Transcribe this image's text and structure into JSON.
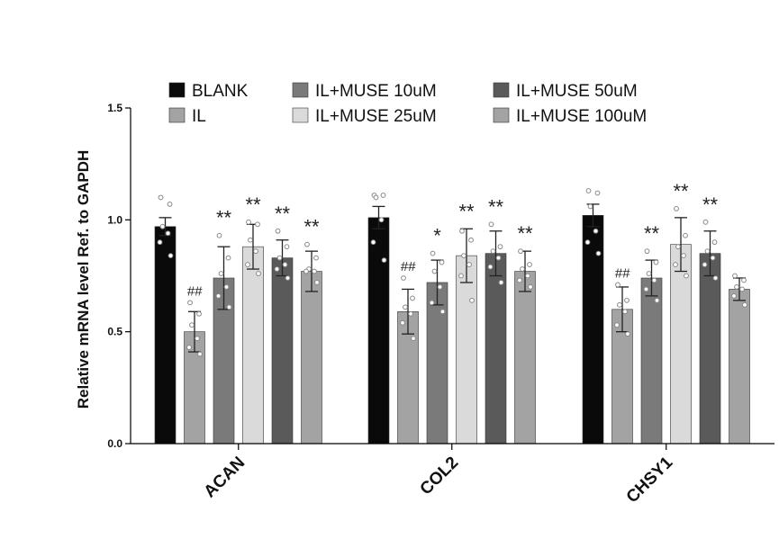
{
  "chart_data": {
    "type": "bar",
    "title": "",
    "xlabel": "",
    "ylabel": "Relative mRNA level Ref. to GAPDH",
    "ylim": [
      0,
      1.5
    ],
    "yticks": [
      0.0,
      0.5,
      1.0,
      1.5
    ],
    "ytick_labels": [
      "0.0",
      "0.5",
      "1.0",
      "1.5"
    ],
    "categories": [
      "ACAN",
      "COL2",
      "CHSY1"
    ],
    "legend_position": "top",
    "series": [
      {
        "name": "BLANK",
        "color": "#0a0a0a",
        "values": [
          0.97,
          1.01,
          1.02
        ],
        "errors": [
          0.04,
          0.05,
          0.05
        ],
        "annotations": [
          "",
          "",
          ""
        ],
        "points": [
          [
            1.1,
            1.07,
            0.97,
            0.94,
            0.9,
            0.84
          ],
          [
            1.11,
            1.11,
            1.1,
            1.0,
            0.9,
            0.82
          ],
          [
            1.13,
            1.12,
            1.06,
            0.95,
            0.9,
            0.85
          ]
        ]
      },
      {
        "name": "IL",
        "color": "#a3a3a3",
        "values": [
          0.5,
          0.59,
          0.6
        ],
        "errors": [
          0.09,
          0.1,
          0.1
        ],
        "annotations": [
          "##",
          "##",
          "##"
        ],
        "points": [
          [
            0.63,
            0.58,
            0.53,
            0.47,
            0.43,
            0.4
          ],
          [
            0.74,
            0.65,
            0.61,
            0.58,
            0.54,
            0.47
          ],
          [
            0.71,
            0.64,
            0.62,
            0.59,
            0.53,
            0.49
          ]
        ]
      },
      {
        "name": "IL+MUSE 10uM",
        "color": "#7a7a7a",
        "values": [
          0.74,
          0.72,
          0.74
        ],
        "errors": [
          0.14,
          0.1,
          0.08
        ],
        "annotations": [
          "**",
          "*",
          "**"
        ],
        "points": [
          [
            0.93,
            0.83,
            0.76,
            0.7,
            0.66,
            0.61
          ],
          [
            0.85,
            0.81,
            0.77,
            0.7,
            0.63,
            0.59
          ],
          [
            0.86,
            0.81,
            0.76,
            0.73,
            0.69,
            0.64
          ]
        ]
      },
      {
        "name": "IL+MUSE 25uM",
        "color": "#dadada",
        "values": [
          0.88,
          0.84,
          0.89
        ],
        "errors": [
          0.1,
          0.12,
          0.12
        ],
        "annotations": [
          "**",
          "**",
          "**"
        ],
        "points": [
          [
            0.99,
            0.98,
            0.91,
            0.86,
            0.8,
            0.76
          ],
          [
            0.95,
            0.91,
            0.84,
            0.8,
            0.75,
            0.64
          ],
          [
            1.05,
            0.93,
            0.88,
            0.84,
            0.8,
            0.75
          ]
        ]
      },
      {
        "name": "IL+MUSE 50uM",
        "color": "#5a5a5a",
        "values": [
          0.83,
          0.85,
          0.85
        ],
        "errors": [
          0.08,
          0.1,
          0.1
        ],
        "annotations": [
          "**",
          "**",
          "**"
        ],
        "points": [
          [
            0.95,
            0.88,
            0.83,
            0.8,
            0.78,
            0.74
          ],
          [
            0.98,
            0.88,
            0.86,
            0.83,
            0.79,
            0.72
          ],
          [
            0.99,
            0.9,
            0.86,
            0.83,
            0.8,
            0.74
          ]
        ]
      },
      {
        "name": "IL+MUSE 100uM",
        "color": "#a3a3a3",
        "values": [
          0.77,
          0.77,
          0.69
        ],
        "errors": [
          0.09,
          0.09,
          0.05
        ],
        "annotations": [
          "**",
          "**",
          ""
        ],
        "points": [
          [
            0.89,
            0.83,
            0.78,
            0.77,
            0.77,
            0.72
          ],
          [
            0.86,
            0.8,
            0.78,
            0.75,
            0.73,
            0.7
          ],
          [
            0.75,
            0.73,
            0.7,
            0.69,
            0.66,
            0.62
          ]
        ]
      }
    ]
  }
}
